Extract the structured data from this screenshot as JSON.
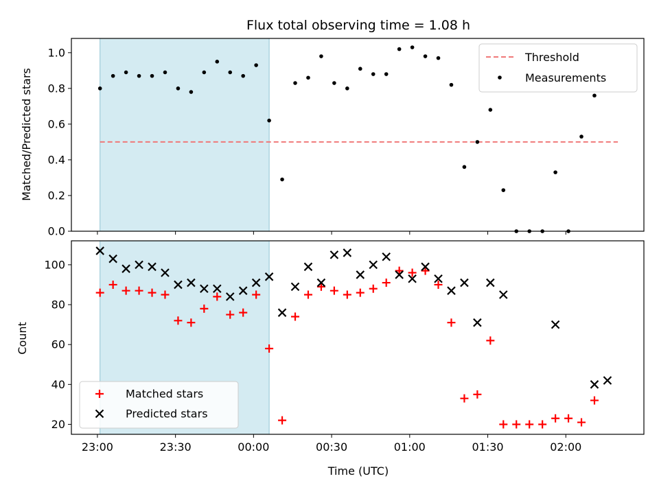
{
  "chart_data": [
    {
      "type": "scatter",
      "title": "Flux total observing time = 1.08 h",
      "xlabel": "",
      "ylabel": "Matched/Predicted stars",
      "xlim_minutes": [
        -10,
        210
      ],
      "ylim": [
        0,
        1.08
      ],
      "yticks": [
        0.0,
        0.2,
        0.4,
        0.6,
        0.8,
        1.0
      ],
      "ytick_labels": [
        "0.0",
        "0.2",
        "0.4",
        "0.6",
        "0.8",
        "1.0"
      ],
      "shaded_region_minutes": [
        1,
        66
      ],
      "legend_position": "top-right",
      "series": [
        {
          "name": "Threshold",
          "kind": "dashed-line",
          "color": "#f07878",
          "x": [
            1,
            200
          ],
          "values": [
            0.5,
            0.5
          ]
        },
        {
          "name": "Measurements",
          "kind": "dot",
          "color": "#000000",
          "x": [
            1,
            6,
            11,
            16,
            21,
            26,
            31,
            36,
            41,
            46,
            51,
            56,
            61,
            66,
            71,
            76,
            81,
            86,
            91,
            96,
            101,
            106,
            111,
            116,
            121,
            126,
            131,
            136,
            141,
            146,
            151,
            156,
            161,
            166,
            171,
            176,
            181,
            186,
            191,
            196
          ],
          "values": [
            0.8,
            0.87,
            0.89,
            0.87,
            0.87,
            0.89,
            0.8,
            0.78,
            0.89,
            0.95,
            0.89,
            0.87,
            0.93,
            0.62,
            0.29,
            0.83,
            0.86,
            0.98,
            0.83,
            0.8,
            0.91,
            0.88,
            0.88,
            1.02,
            1.03,
            0.98,
            0.97,
            0.82,
            0.36,
            0.5,
            0.68,
            0.23,
            0.0,
            0.0,
            0.0,
            0.33,
            0.0,
            0.53,
            0.76,
            null
          ]
        }
      ]
    },
    {
      "type": "scatter",
      "title": "",
      "xlabel": "Time (UTC)",
      "ylabel": "Count",
      "xlim_minutes": [
        -10,
        210
      ],
      "ylim": [
        15,
        112
      ],
      "yticks": [
        20,
        40,
        60,
        80,
        100
      ],
      "ytick_labels": [
        "20",
        "40",
        "60",
        "80",
        "100"
      ],
      "xticks_minutes": [
        0,
        30,
        60,
        90,
        120,
        150,
        180
      ],
      "xtick_labels": [
        "23:00",
        "23:30",
        "00:00",
        "00:30",
        "01:00",
        "01:30",
        "02:00"
      ],
      "shaded_region_minutes": [
        1,
        66
      ],
      "legend_position": "bottom-left",
      "series": [
        {
          "name": "Matched stars",
          "marker": "plus",
          "color": "#ff0000",
          "x": [
            1,
            6,
            11,
            16,
            21,
            26,
            31,
            36,
            41,
            46,
            51,
            56,
            61,
            66,
            71,
            76,
            81,
            86,
            91,
            96,
            101,
            106,
            111,
            116,
            121,
            126,
            131,
            136,
            141,
            146,
            151,
            156,
            161,
            166,
            171,
            176,
            181,
            186,
            191,
            196
          ],
          "values": [
            86,
            90,
            87,
            87,
            86,
            85,
            72,
            71,
            78,
            84,
            75,
            76,
            85,
            58,
            22,
            74,
            85,
            89,
            87,
            85,
            86,
            88,
            91,
            97,
            96,
            97,
            90,
            71,
            33,
            35,
            62,
            20,
            20,
            20,
            20,
            23,
            23,
            21,
            32,
            null
          ]
        },
        {
          "name": "Predicted stars",
          "marker": "x",
          "color": "#000000",
          "x": [
            1,
            6,
            11,
            16,
            21,
            26,
            31,
            36,
            41,
            46,
            51,
            56,
            61,
            66,
            71,
            76,
            81,
            86,
            91,
            96,
            101,
            106,
            111,
            116,
            121,
            126,
            131,
            136,
            141,
            146,
            151,
            156,
            176,
            191,
            196
          ],
          "values": [
            107,
            103,
            98,
            100,
            99,
            96,
            90,
            91,
            88,
            88,
            84,
            87,
            91,
            94,
            76,
            89,
            99,
            91,
            105,
            106,
            95,
            100,
            104,
            95,
            93,
            99,
            93,
            87,
            91,
            71,
            91,
            85,
            70,
            40,
            42
          ]
        }
      ]
    }
  ]
}
